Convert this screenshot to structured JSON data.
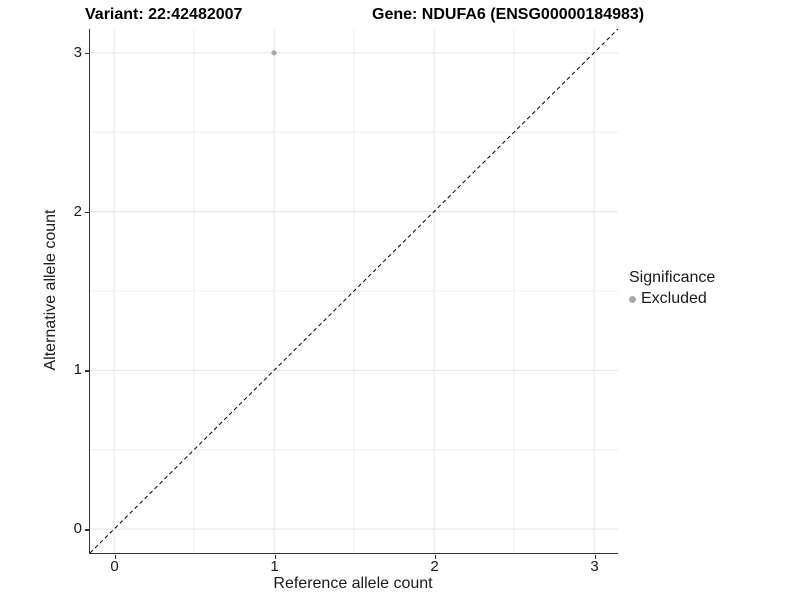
{
  "titles": {
    "variant": "Variant: 22:42482007",
    "gene": "Gene: NDUFA6 (ENSG00000184983)"
  },
  "axes": {
    "x_label": "Reference allele count",
    "y_label": "Alternative allele count"
  },
  "legend": {
    "title": "Significance",
    "items": [
      {
        "label": "Excluded",
        "color": "#a8a8a8"
      }
    ]
  },
  "chart_data": {
    "type": "scatter",
    "title": "Variant: 22:42482007 | Gene: NDUFA6 (ENSG00000184983)",
    "xlabel": "Reference allele count",
    "ylabel": "Alternative allele count",
    "xlim": [
      -0.15,
      3.15
    ],
    "ylim": [
      -0.15,
      3.15
    ],
    "x_ticks": [
      0,
      1,
      2,
      3
    ],
    "y_ticks": [
      0,
      1,
      2,
      3
    ],
    "x_minor_ticks": [
      0.5,
      1.5,
      2.5
    ],
    "y_minor_ticks": [
      0.5,
      1.5,
      2.5
    ],
    "grid": true,
    "legend_position": "right",
    "series": [
      {
        "name": "Excluded",
        "color": "#a8a8a8",
        "points": [
          {
            "x": 1,
            "y": 3
          }
        ]
      }
    ],
    "reference_line": {
      "kind": "abline",
      "slope": 1,
      "intercept": 0,
      "dashed": true,
      "color": "#000000"
    },
    "colors": {
      "major_grid": "#e4e4e4",
      "minor_grid": "#efefef",
      "axis_line": "#333333",
      "background": "#ffffff"
    }
  }
}
